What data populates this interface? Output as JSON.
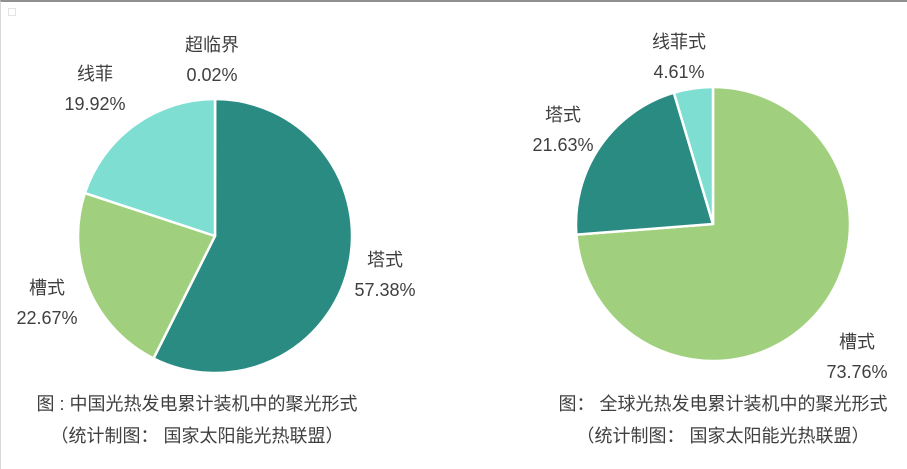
{
  "window": {
    "background": "#ffffff",
    "top_border_color": "#909090",
    "left_border_color": "#d8d8d8",
    "text_color": "#3f3f3f",
    "slice_border_color": "#ffffff"
  },
  "chart_data": [
    {
      "type": "pie",
      "title": "图 : 中国光热发电累计装机中的聚光形式",
      "subtitle": "（统计制图： 国家太阳能光热联盟）",
      "start_angle_deg": 0,
      "direction": "clockwise",
      "legend": "none",
      "slices": [
        {
          "id": "supercritical",
          "label": "超临界",
          "value": 0.02,
          "pct_label": "0.02%",
          "color": "#c9c9c9"
        },
        {
          "id": "tower",
          "label": "塔式",
          "value": 57.38,
          "pct_label": "57.38%",
          "color": "#2a8b82"
        },
        {
          "id": "trough",
          "label": "槽式",
          "value": 22.67,
          "pct_label": "22.67%",
          "color": "#a0d07d"
        },
        {
          "id": "linear-fresnel",
          "label": "线菲",
          "value": 19.92,
          "pct_label": "19.92%",
          "color": "#7eded2"
        }
      ]
    },
    {
      "type": "pie",
      "title": "图：  全球光热发电累计装机中的聚光形式",
      "subtitle": "（统计制图： 国家太阳能光热联盟）",
      "start_angle_deg": 0,
      "direction": "clockwise",
      "legend": "none",
      "slices": [
        {
          "id": "trough",
          "label": "槽式",
          "value": 73.76,
          "pct_label": "73.76%",
          "color": "#a0d07d"
        },
        {
          "id": "tower",
          "label": "塔式",
          "value": 21.63,
          "pct_label": "21.63%",
          "color": "#2a8b82"
        },
        {
          "id": "linear-fresnel",
          "label": "线菲式",
          "value": 4.61,
          "pct_label": "4.61%",
          "color": "#7eded2"
        }
      ]
    }
  ]
}
